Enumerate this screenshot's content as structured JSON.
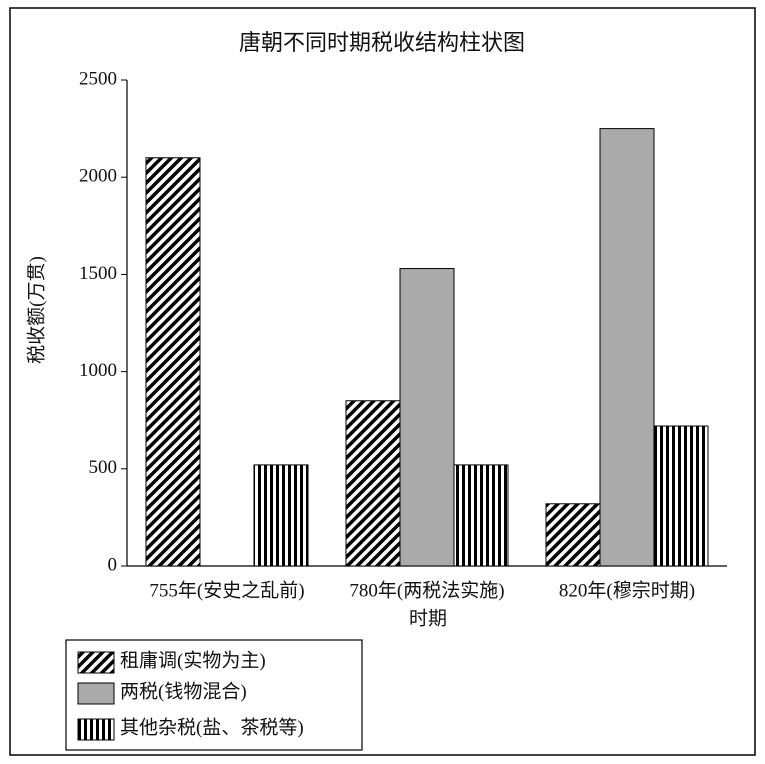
{
  "chart_data": {
    "type": "bar",
    "title": "唐朝不同时期税收结构柱状图",
    "x_label": "时期",
    "y_label": "税收额(万贯)",
    "categories": [
      "755年(安史之乱前)",
      "780年(两税法实施)",
      "820年(穆宗时期)"
    ],
    "series": [
      {
        "name": "租庸调(实物为主)",
        "color": "#000000",
        "pattern": "diagonal",
        "values": [
          2100,
          850,
          320
        ]
      },
      {
        "name": "两税(钱物混合)",
        "color": "#aaaaaa",
        "pattern": "solid",
        "values": [
          null,
          1530,
          2250
        ]
      },
      {
        "name": "其他杂税(盐、茶税等)",
        "color": "#000000",
        "pattern": "vertical",
        "values": [
          520,
          520,
          720
        ]
      }
    ],
    "ylim": [
      0,
      2500
    ],
    "yticks": [
      0,
      500,
      1000,
      1500,
      2000,
      2500
    ],
    "grid": false,
    "legend": "bottom-left"
  }
}
